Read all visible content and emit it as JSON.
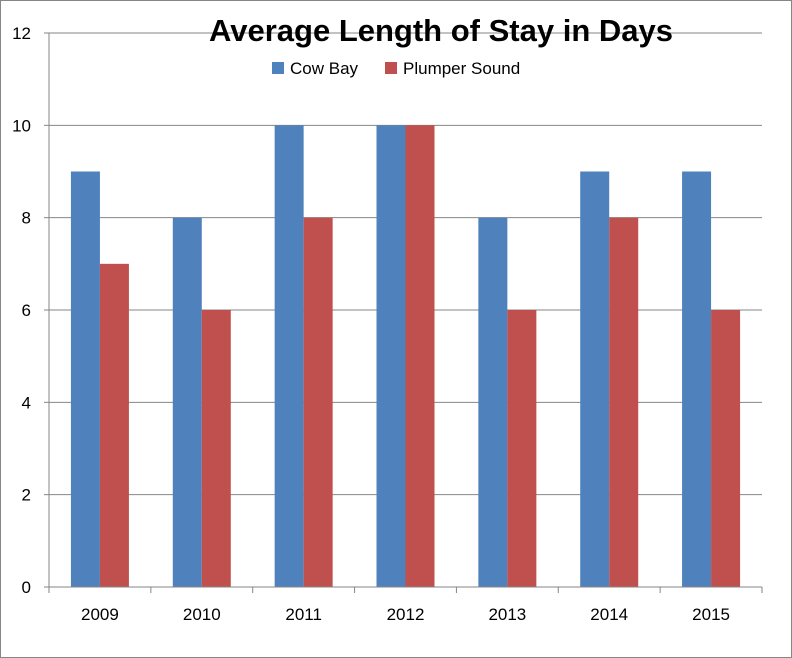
{
  "chart_data": {
    "type": "bar",
    "title": "Average Length of Stay in Days",
    "xlabel": "",
    "ylabel": "",
    "categories": [
      "2009",
      "2010",
      "2011",
      "2012",
      "2013",
      "2014",
      "2015"
    ],
    "series": [
      {
        "name": "Cow Bay",
        "color": "#4F81BD",
        "values": [
          9,
          8,
          10,
          10,
          8,
          9,
          9
        ]
      },
      {
        "name": "Plumper Sound",
        "color": "#C0504D",
        "values": [
          7,
          6,
          8,
          10,
          6,
          8,
          6
        ]
      }
    ],
    "ylim": [
      0,
      12
    ],
    "yticks": [
      0,
      2,
      4,
      6,
      8,
      10,
      12
    ],
    "grid": true,
    "legend_position": "top"
  }
}
